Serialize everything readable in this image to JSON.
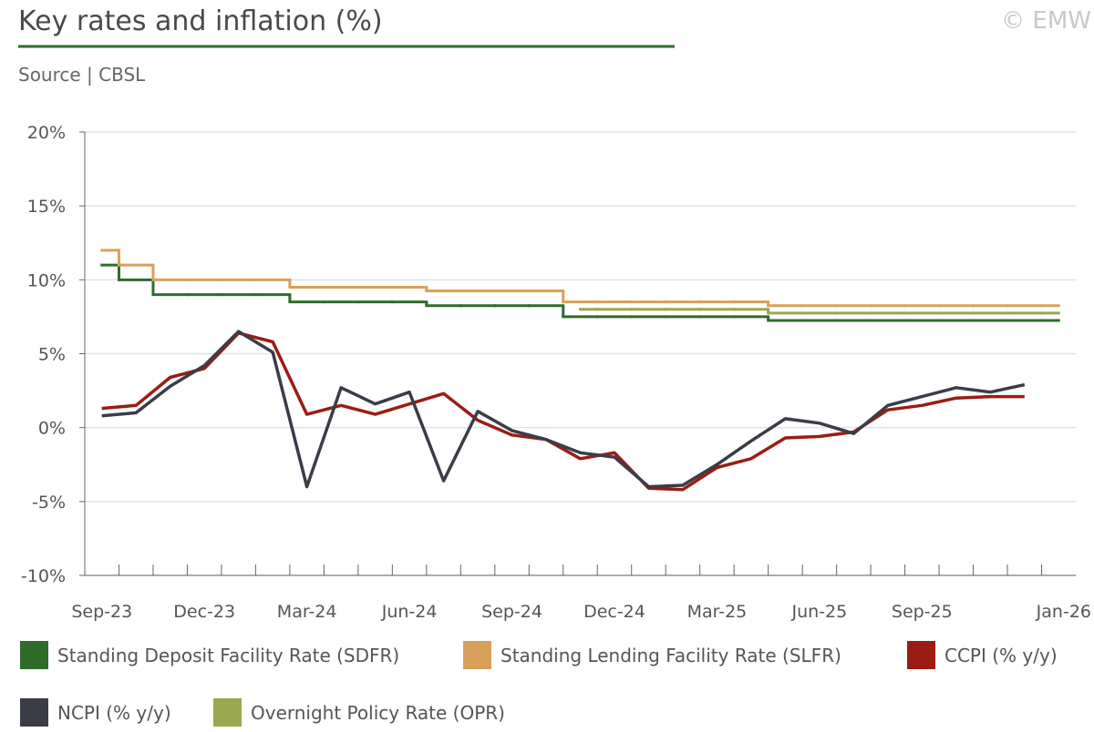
{
  "chart_data": {
    "type": "line",
    "title": "Key rates and inflation (%)",
    "subtitle": "Source | CBSL",
    "credit": "© EMW",
    "categories": [
      "Sep-23",
      null,
      null,
      "Dec-23",
      null,
      null,
      "Mar-24",
      null,
      null,
      "Jun-24",
      null,
      null,
      "Sep-24",
      null,
      null,
      "Dec-24",
      null,
      null,
      "Mar-25",
      null,
      null,
      "Jun-25",
      null,
      null,
      "Sep-25",
      null,
      null,
      null,
      "Jan-26"
    ],
    "ylim": [
      -10,
      20
    ],
    "yticks": [
      {
        "value": -10,
        "label": "-10%"
      },
      {
        "value": -5,
        "label": "-5%"
      },
      {
        "value": 0,
        "label": "0%"
      },
      {
        "value": 5,
        "label": "5%"
      },
      {
        "value": 10,
        "label": "10%"
      },
      {
        "value": 15,
        "label": "15%"
      },
      {
        "value": 20,
        "label": "20%"
      }
    ],
    "grid": true,
    "series": [
      {
        "name": "Standing Deposit Facility Rate (SDFR)",
        "color": "#2f6b2b",
        "style": "step",
        "values": [
          11,
          10,
          9,
          9,
          9,
          9,
          8.5,
          8.5,
          8.5,
          8.5,
          8.25,
          8.25,
          8.25,
          8.25,
          7.5,
          7.5,
          7.5,
          7.5,
          7.5,
          7.5,
          7.25,
          7.25,
          7.25,
          7.25,
          7.25,
          7.25,
          7.25,
          7.25,
          7.25
        ]
      },
      {
        "name": "Standing Lending Facility Rate (SLFR)",
        "color": "#d9a05b",
        "style": "step",
        "values": [
          12,
          11,
          10,
          10,
          10,
          10,
          9.5,
          9.5,
          9.5,
          9.5,
          9.25,
          9.25,
          9.25,
          9.25,
          8.5,
          8.5,
          8.5,
          8.5,
          8.5,
          8.5,
          8.25,
          8.25,
          8.25,
          8.25,
          8.25,
          8.25,
          8.25,
          8.25,
          8.25
        ]
      },
      {
        "name": "CCPI (% y/y)",
        "color": "#9b1c14",
        "style": "line",
        "values": [
          1.3,
          1.5,
          3.4,
          4.0,
          6.4,
          5.8,
          0.9,
          1.5,
          0.9,
          1.6,
          2.3,
          0.5,
          -0.5,
          -0.8,
          -2.1,
          -1.7,
          -4.1,
          -4.2,
          -2.7,
          -2.1,
          -0.7,
          -0.6,
          -0.3,
          1.2,
          1.5,
          2.0,
          2.1,
          2.1,
          null
        ]
      },
      {
        "name": "NCPI (% y/y)",
        "color": "#3a3d48",
        "style": "line",
        "values": [
          0.8,
          1.0,
          2.8,
          4.2,
          6.5,
          5.1,
          -4.0,
          2.7,
          1.6,
          2.4,
          -3.6,
          1.1,
          -0.2,
          -0.8,
          -1.7,
          -2.0,
          -4.0,
          -3.9,
          -2.5,
          -0.9,
          0.6,
          0.3,
          -0.4,
          1.5,
          2.1,
          2.7,
          2.4,
          2.9,
          null
        ]
      },
      {
        "name": "Overnight Policy Rate (OPR)",
        "color": "#9aa84f",
        "style": "step",
        "values": [
          null,
          null,
          null,
          null,
          null,
          null,
          null,
          null,
          null,
          null,
          null,
          null,
          null,
          null,
          8,
          8,
          8,
          8,
          8,
          8,
          7.75,
          7.75,
          7.75,
          7.75,
          7.75,
          7.75,
          7.75,
          7.75,
          7.75
        ]
      }
    ]
  }
}
